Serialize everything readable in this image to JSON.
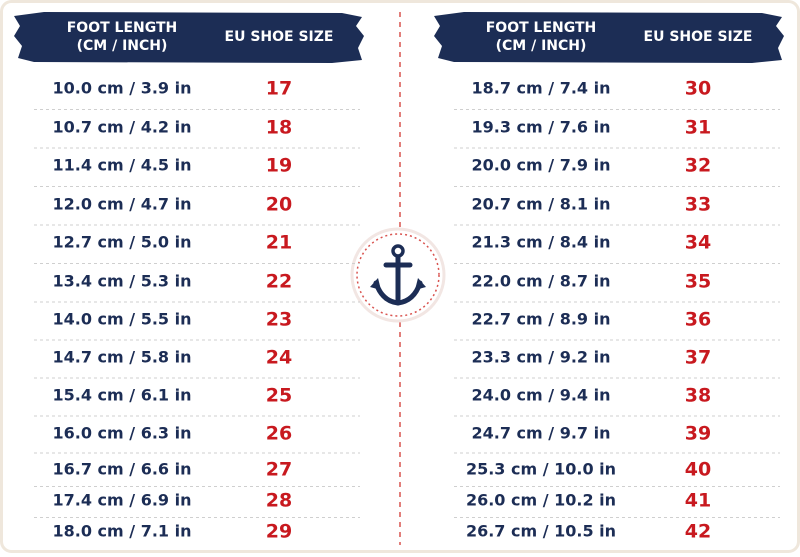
{
  "tables": [
    {
      "columns": [
        {
          "lines": [
            "FOOT LENGTH",
            "(CM / INCH)"
          ]
        },
        {
          "lines": [
            "EU SHOE SIZE"
          ]
        }
      ],
      "rows": [
        [
          "10.0 cm / 3.9 in",
          17
        ],
        [
          "10.7 cm / 4.2 in",
          18
        ],
        [
          "11.4 cm / 4.5 in",
          19
        ],
        [
          "12.0 cm / 4.7 in",
          20
        ],
        [
          "12.7 cm / 5.0 in",
          21
        ],
        [
          "13.4 cm / 5.3 in",
          22
        ],
        [
          "14.0 cm / 5.5 in",
          23
        ],
        [
          "14.7 cm / 5.8 in",
          24
        ],
        [
          "15.4 cm / 6.1 in",
          25
        ],
        [
          "16.0 cm / 6.3 in",
          26
        ],
        [
          "16.7 cm / 6.6 in",
          27
        ],
        [
          "17.4 cm / 6.9 in",
          28
        ],
        [
          "18.0 cm / 7.1 in",
          29
        ]
      ]
    },
    {
      "columns": [
        {
          "lines": [
            "FOOT LENGTH",
            "(CM / INCH)"
          ]
        },
        {
          "lines": [
            "EU SHOE SIZE"
          ]
        }
      ],
      "rows": [
        [
          "18.7 cm / 7.4 in",
          30
        ],
        [
          "19.3 cm / 7.6 in",
          31
        ],
        [
          "20.0 cm / 7.9 in",
          32
        ],
        [
          "20.7 cm / 8.1 in",
          33
        ],
        [
          "21.3 cm / 8.4 in",
          34
        ],
        [
          "22.0 cm / 8.7 in",
          35
        ],
        [
          "22.7 cm / 8.9 in",
          36
        ],
        [
          "23.3 cm / 9.2 in",
          37
        ],
        [
          "24.0 cm / 9.4 in",
          38
        ],
        [
          "24.7 cm / 9.7 in",
          39
        ],
        [
          "25.3 cm / 10.0 in",
          40
        ],
        [
          "26.0 cm / 10.2 in",
          41
        ],
        [
          "26.7 cm / 10.5 in",
          42
        ]
      ]
    }
  ]
}
